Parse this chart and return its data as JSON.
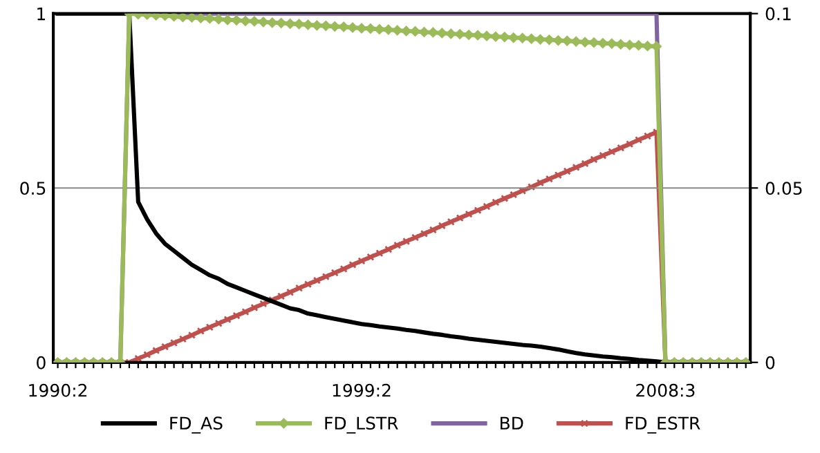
{
  "chart_data": {
    "type": "line",
    "categories": [
      "1990:2",
      null,
      null,
      null,
      null,
      null,
      null,
      null,
      null,
      null,
      null,
      null,
      null,
      null,
      null,
      null,
      null,
      null,
      null,
      null,
      null,
      null,
      null,
      null,
      null,
      null,
      null,
      null,
      null,
      null,
      null,
      null,
      null,
      null,
      "1999:2",
      null,
      null,
      null,
      null,
      null,
      null,
      null,
      null,
      null,
      null,
      null,
      null,
      null,
      null,
      null,
      null,
      null,
      null,
      null,
      null,
      null,
      null,
      null,
      null,
      null,
      null,
      null,
      null,
      null,
      null,
      null,
      null,
      null,
      "2008:3",
      null,
      null,
      null,
      null,
      null,
      null,
      null,
      null,
      null
    ],
    "ylim": [
      0,
      1
    ],
    "yticks": [
      0,
      0.5,
      1
    ],
    "y2lim": [
      0,
      0.1
    ],
    "y2ticks": [
      0,
      0.05,
      0.1
    ],
    "grid": "y",
    "legend": "bottom",
    "series": [
      {
        "name": "FD_AS",
        "color": "#000000",
        "marker": "none",
        "values": [
          1,
          1,
          1,
          1,
          1,
          1,
          1,
          1,
          1,
          0.46,
          0.41,
          0.37,
          0.34,
          0.32,
          0.3,
          0.28,
          0.265,
          0.25,
          0.24,
          0.225,
          0.215,
          0.205,
          0.195,
          0.185,
          0.175,
          0.165,
          0.155,
          0.15,
          0.14,
          0.135,
          0.13,
          0.125,
          0.12,
          0.115,
          0.11,
          0.107,
          0.103,
          0.1,
          0.097,
          0.093,
          0.09,
          0.086,
          0.082,
          0.079,
          0.075,
          0.072,
          0.068,
          0.065,
          0.062,
          0.059,
          0.056,
          0.053,
          0.05,
          0.048,
          0.045,
          0.041,
          0.037,
          0.032,
          0.027,
          0.023,
          0.02,
          0.017,
          0.015,
          0.012,
          0.01,
          0.007,
          0.005,
          0.003,
          0,
          0,
          0,
          0,
          0,
          0,
          0,
          0,
          0,
          0
        ]
      },
      {
        "name": "FD_LSTR",
        "color": "#9bbb59",
        "marker": "diamond",
        "values": [
          0,
          0,
          0,
          0,
          0,
          0,
          0,
          0,
          1.0,
          0.998,
          0.997,
          0.995,
          0.994,
          0.992,
          0.99,
          0.989,
          0.987,
          0.986,
          0.984,
          0.982,
          0.981,
          0.979,
          0.978,
          0.976,
          0.974,
          0.973,
          0.971,
          0.97,
          0.968,
          0.966,
          0.965,
          0.963,
          0.962,
          0.96,
          0.958,
          0.957,
          0.955,
          0.954,
          0.952,
          0.95,
          0.949,
          0.947,
          0.946,
          0.944,
          0.942,
          0.941,
          0.939,
          0.938,
          0.936,
          0.934,
          0.933,
          0.931,
          0.93,
          0.928,
          0.926,
          0.925,
          0.923,
          0.922,
          0.92,
          0.918,
          0.917,
          0.915,
          0.914,
          0.912,
          0.91,
          0.909,
          0.907,
          0.906,
          0,
          0,
          0,
          0,
          0,
          0,
          0,
          0,
          0,
          0
        ]
      },
      {
        "name": "BD",
        "color": "#8064a2",
        "marker": "none",
        "values": [
          0,
          0,
          0,
          0,
          0,
          0,
          0,
          0,
          1,
          1,
          1,
          1,
          1,
          1,
          1,
          1,
          1,
          1,
          1,
          1,
          1,
          1,
          1,
          1,
          1,
          1,
          1,
          1,
          1,
          1,
          1,
          1,
          1,
          1,
          1,
          1,
          1,
          1,
          1,
          1,
          1,
          1,
          1,
          1,
          1,
          1,
          1,
          1,
          1,
          1,
          1,
          1,
          1,
          1,
          1,
          1,
          1,
          1,
          1,
          1,
          1,
          1,
          1,
          1,
          1,
          1,
          1,
          1,
          0,
          0,
          0,
          0,
          0,
          0,
          0,
          0,
          0,
          0
        ]
      },
      {
        "name": "FD_ESTR",
        "color": "#c0504d",
        "marker": "cross",
        "axis": "y2",
        "values": [
          0,
          0,
          0,
          0,
          0,
          0,
          0,
          0,
          0,
          0.0011,
          0.0022,
          0.0034,
          0.0045,
          0.0056,
          0.0067,
          0.0078,
          0.009,
          0.0101,
          0.0112,
          0.0123,
          0.0134,
          0.0145,
          0.0157,
          0.0168,
          0.0179,
          0.019,
          0.0201,
          0.0213,
          0.0224,
          0.0235,
          0.0246,
          0.0257,
          0.0268,
          0.028,
          0.0291,
          0.0302,
          0.0313,
          0.0324,
          0.0336,
          0.0347,
          0.0358,
          0.0369,
          0.038,
          0.0392,
          0.0403,
          0.0414,
          0.0425,
          0.0436,
          0.0447,
          0.0459,
          0.047,
          0.0481,
          0.0492,
          0.0503,
          0.0515,
          0.0526,
          0.0537,
          0.0548,
          0.0559,
          0.057,
          0.0582,
          0.0593,
          0.0604,
          0.0615,
          0.0626,
          0.0638,
          0.0649,
          0.066,
          0,
          0,
          0,
          0,
          0,
          0,
          0,
          0,
          0,
          0
        ]
      }
    ]
  }
}
